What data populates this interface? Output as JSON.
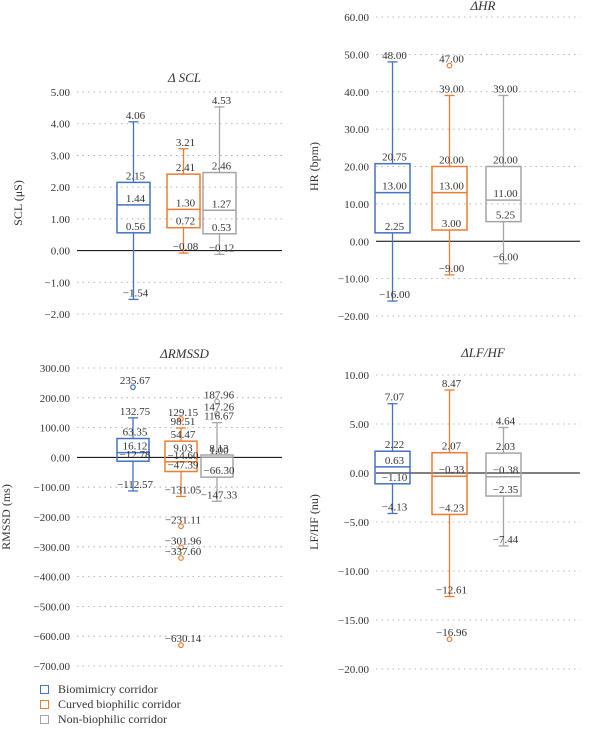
{
  "colors": {
    "biomimicry": "#4472c4",
    "curved": "#ed7d31",
    "non_biophilic": "#a5a5a5",
    "axis": "#000000",
    "grid": "#a0a0a0",
    "text": "#333333"
  },
  "legend": {
    "items": [
      {
        "label": "Biomimicry corridor",
        "color": "#4472c4"
      },
      {
        "label": "Curved biophilic corridor",
        "color": "#ed7d31"
      },
      {
        "label": "Non-biophilic corridor",
        "color": "#a5a5a5"
      }
    ]
  },
  "chart_data": [
    {
      "id": "scl",
      "type": "box",
      "title": "Δ SCL",
      "ylabel": "SCL (μS)",
      "ylim": [
        -2,
        5
      ],
      "yticks": [
        "-2.00",
        "-1.00",
        "0.00",
        "1.00",
        "2.00",
        "3.00",
        "4.00",
        "5.00"
      ],
      "series": [
        {
          "name": "Biomimicry corridor",
          "max": 4.06,
          "q3": 2.15,
          "median": 1.44,
          "q1": 0.56,
          "min": -1.54,
          "outliers": [],
          "labels": [
            "4.06",
            "2.15",
            "1.44",
            "0.56",
            "−1.54"
          ]
        },
        {
          "name": "Curved biophilic corridor",
          "max": 3.21,
          "q3": 2.41,
          "median": 1.3,
          "q1": 0.72,
          "min": -0.08,
          "outliers": [],
          "labels": [
            "3.21",
            "2.41",
            "1.30",
            "0.72",
            "−0.08"
          ]
        },
        {
          "name": "Non-biophilic corridor",
          "max": 4.53,
          "q3": 2.46,
          "median": 1.27,
          "q1": 0.53,
          "min": -0.12,
          "outliers": [],
          "labels": [
            "4.53",
            "2.46",
            "1.27",
            "0.53",
            "−0.12"
          ]
        }
      ]
    },
    {
      "id": "hr",
      "type": "box",
      "title": "ΔHR",
      "ylabel": "HR (bpm)",
      "ylim": [
        -20,
        60
      ],
      "yticks": [
        "-20.00",
        "-10.00",
        "0.00",
        "10.00",
        "20.00",
        "30.00",
        "40.00",
        "50.00",
        "60.00"
      ],
      "series": [
        {
          "name": "Biomimicry corridor",
          "max": 48.0,
          "q3": 20.75,
          "median": 13.0,
          "q1": 2.25,
          "min": -16.0,
          "outliers": [],
          "labels": [
            "48.00",
            "20.75",
            "13.00",
            "2.25",
            "−16.00"
          ]
        },
        {
          "name": "Curved biophilic corridor",
          "max": 39.0,
          "q3": 20.0,
          "median": 13.0,
          "q1": 3.0,
          "min": -9.0,
          "outliers": [
            47.0
          ],
          "labels": [
            "47.00",
            "39.00",
            "20.00",
            "13.00",
            "3.00",
            "−9.00"
          ]
        },
        {
          "name": "Non-biophilic corridor",
          "max": 39.0,
          "q3": 20.0,
          "median": 11.0,
          "q1": 5.25,
          "min": -6.0,
          "outliers": [],
          "labels": [
            "39.00",
            "20.00",
            "11.00",
            "5.25",
            "−6.00"
          ]
        }
      ]
    },
    {
      "id": "rmssd",
      "type": "box",
      "title": "ΔRMSSD",
      "ylabel": "RMSSD (ms)",
      "ylim": [
        -700,
        300
      ],
      "yticks": [
        "-700.00",
        "-600.00",
        "-500.00",
        "-400.00",
        "-300.00",
        "-200.00",
        "-100.00",
        "0.00",
        "100.00",
        "200.00",
        "300.00"
      ],
      "series": [
        {
          "name": "Biomimicry corridor",
          "max": 132.75,
          "q3": 63.35,
          "median": 16.12,
          "q1": -12.78,
          "min": -112.57,
          "outliers": [
            235.67
          ],
          "labels": [
            "235.67",
            "132.75",
            "63.35",
            "16.12",
            "−12.78",
            "−112.57"
          ]
        },
        {
          "name": "Curved biophilic corridor",
          "max": 98.51,
          "q3": 54.47,
          "median": -14.6,
          "q1": -47.39,
          "min": -131.05,
          "outliers": [
            129.15,
            -231.11,
            -301.96,
            -337.6,
            -630.14
          ],
          "labels": [
            "129.15",
            "98.51",
            "54.47",
            "9.03",
            "−14.60",
            "−47.39",
            "−131.05",
            "−231.11",
            "−301.96",
            "−337.60",
            "−630.14"
          ]
        },
        {
          "name": "Non-biophilic corridor",
          "max": 116.67,
          "q3": 8.13,
          "median": 1.0,
          "q1": -66.3,
          "min": -147.33,
          "outliers": [
            187.96,
            147.26
          ],
          "labels": [
            "187.96",
            "147.26",
            "116.67",
            "8.13",
            "1.00",
            "−66.30",
            "−147.33"
          ]
        }
      ]
    },
    {
      "id": "lfhf",
      "type": "box",
      "title": "ΔLF/HF",
      "ylabel": "LF/HF (nu)",
      "ylim": [
        -20,
        10
      ],
      "yticks": [
        "-20.00",
        "-15.00",
        "-10.00",
        "-5.00",
        "0.00",
        "5.00",
        "10.00"
      ],
      "series": [
        {
          "name": "Biomimicry corridor",
          "max": 7.07,
          "q3": 2.22,
          "median": 0.63,
          "q1": -1.1,
          "min": -4.13,
          "outliers": [],
          "labels": [
            "7.07",
            "2.22",
            "0.63",
            "−1.10",
            "−4.13"
          ]
        },
        {
          "name": "Curved biophilic corridor",
          "max": 8.47,
          "q3": 2.07,
          "median": -0.33,
          "q1": -4.23,
          "min": -12.61,
          "outliers": [
            -16.96
          ],
          "labels": [
            "8.47",
            "2.07",
            "−0.33",
            "−4.23",
            "−12.61",
            "−16.96"
          ]
        },
        {
          "name": "Non-biophilic corridor",
          "max": 4.64,
          "q3": 2.03,
          "median": -0.38,
          "q1": -2.35,
          "min": -7.44,
          "outliers": [],
          "labels": [
            "4.64",
            "2.03",
            "−0.38",
            "−2.35",
            "−7.44"
          ]
        }
      ]
    }
  ]
}
